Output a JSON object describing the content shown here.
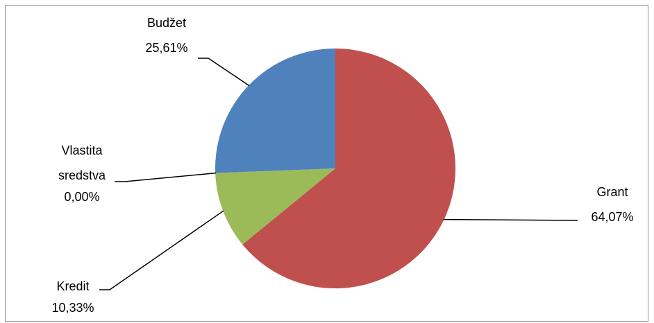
{
  "chart_data": {
    "type": "pie",
    "title": "",
    "start_angle_deg": 0,
    "direction": "clockwise",
    "slices": [
      {
        "label": "Grant",
        "value": 64.07,
        "value_text": "64,07%",
        "color": "#C0504D"
      },
      {
        "label": "Kredit",
        "value": 10.33,
        "value_text": "10,33%",
        "color": "#9BBB59"
      },
      {
        "label": "Vlastita sredstva",
        "label_lines": [
          "Vlastita",
          "sredstva"
        ],
        "value": 0.0,
        "value_text": "0,00%",
        "color": "#8064A2"
      },
      {
        "label": "Budžet",
        "value": 25.61,
        "value_text": "25,61%",
        "color": "#4F81BD"
      }
    ],
    "legend": "none",
    "data_labels": "outside with leader lines"
  }
}
